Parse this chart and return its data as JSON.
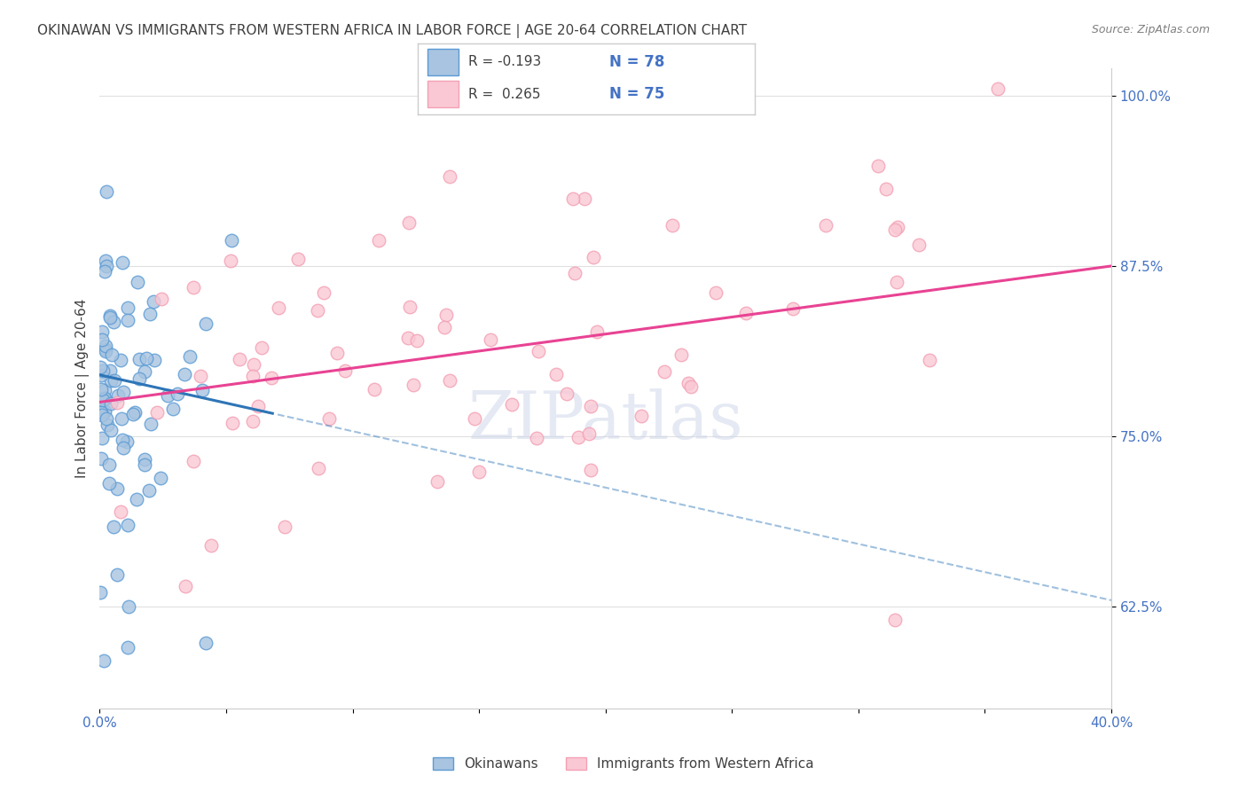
{
  "title": "OKINAWAN VS IMMIGRANTS FROM WESTERN AFRICA IN LABOR FORCE | AGE 20-64 CORRELATION CHART",
  "source": "Source: ZipAtlas.com",
  "xlabel": "",
  "ylabel": "In Labor Force | Age 20-64",
  "xlim": [
    0.0,
    0.4
  ],
  "ylim": [
    0.55,
    1.02
  ],
  "xticks": [
    0.0,
    0.05,
    0.1,
    0.15,
    0.2,
    0.25,
    0.3,
    0.35,
    0.4
  ],
  "xticklabels": [
    "0.0%",
    "",
    "",
    "",
    "",
    "",
    "",
    "",
    "40.0%"
  ],
  "ytick_positions": [
    0.625,
    0.75,
    0.875,
    1.0
  ],
  "yticklabels": [
    "62.5%",
    "75.0%",
    "87.5%",
    "100.0%"
  ],
  "blue_scatter_face": "#a8c4e0",
  "blue_scatter_edge": "#5b9bd5",
  "pink_scatter_face": "#f9c8d4",
  "pink_scatter_edge": "#f4a0b5",
  "blue_line_color": "#2e75b6",
  "pink_line_color": "#e84393",
  "R_blue": -0.193,
  "N_blue": 78,
  "R_pink": 0.265,
  "N_pink": 75,
  "watermark": "ZIPatlas",
  "grid_color": "#e0e0e0",
  "background_color": "#ffffff",
  "title_color": "#404040",
  "axis_label_color": "#404040",
  "tick_label_color": "#4472c4",
  "legend_R_color": "#404040",
  "legend_N_color": "#4472c4",
  "blue_intercept": 0.795,
  "blue_slope": -0.414,
  "pink_intercept": 0.775,
  "pink_slope": 0.25
}
